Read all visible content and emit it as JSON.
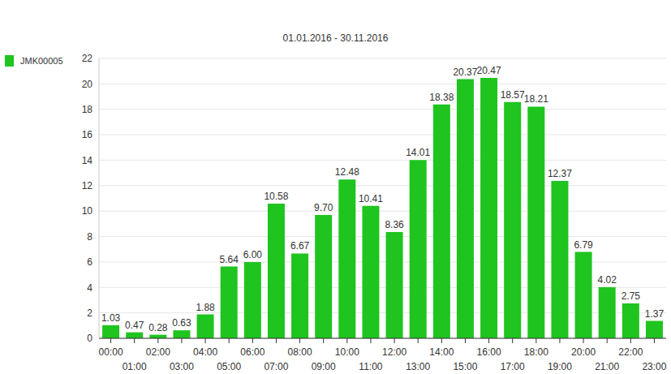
{
  "chart_data": {
    "type": "bar",
    "title": "01.01.2016 - 30.11.2016",
    "categories": [
      "00:00",
      "01:00",
      "02:00",
      "03:00",
      "04:00",
      "05:00",
      "06:00",
      "07:00",
      "08:00",
      "09:00",
      "10:00",
      "11:00",
      "12:00",
      "13:00",
      "14:00",
      "15:00",
      "16:00",
      "17:00",
      "18:00",
      "19:00",
      "20:00",
      "21:00",
      "22:00",
      "23:00"
    ],
    "series": [
      {
        "name": "JMK00005",
        "color": "#1fc41f",
        "values": [
          1.03,
          0.47,
          0.28,
          0.63,
          1.88,
          5.64,
          6.0,
          10.58,
          6.67,
          9.7,
          12.48,
          10.41,
          8.36,
          14.01,
          18.38,
          20.37,
          20.47,
          18.57,
          18.21,
          12.37,
          6.79,
          4.02,
          2.75,
          1.37
        ],
        "value_labels": [
          "1.03",
          "0.47",
          "0.28",
          "0.63",
          "1.88",
          "5.64",
          "6.00",
          "10.58",
          "6.67",
          "9.70",
          "12.48",
          "10.41",
          "8.36",
          "14.01",
          "18.38",
          "20.37",
          "20.47",
          "18.57",
          "18.21",
          "12.37",
          "6.79",
          "4.02",
          "2.75",
          "1.37"
        ]
      }
    ],
    "ylim": [
      0,
      22
    ],
    "yticks": [
      0,
      2,
      4,
      6,
      8,
      10,
      12,
      14,
      16,
      18,
      20,
      22
    ],
    "grid": true,
    "legend": "top-left",
    "data_labels": true
  }
}
